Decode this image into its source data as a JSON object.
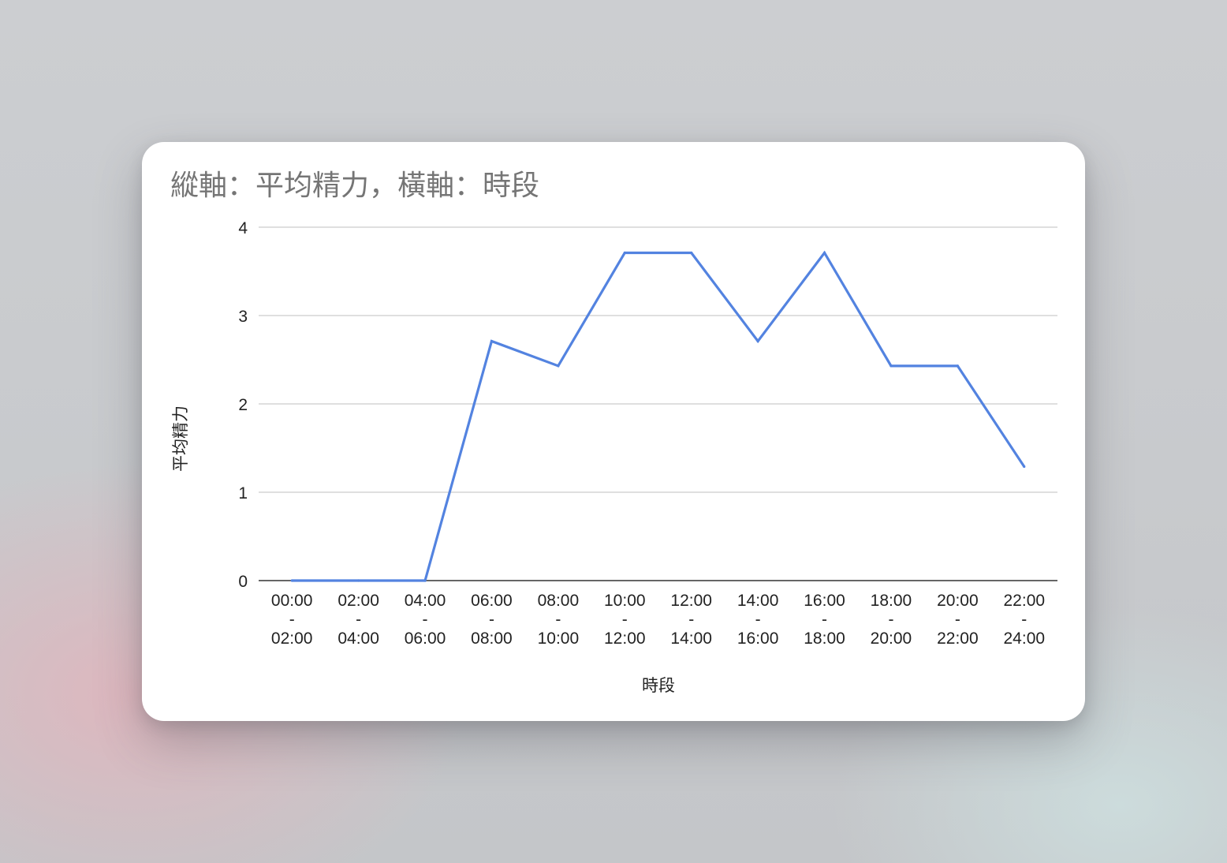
{
  "chart_data": {
    "type": "line",
    "title": "縱軸：平均精力，橫軸：時段",
    "xlabel": "時段",
    "ylabel": "平均精力",
    "ylim": [
      0,
      4
    ],
    "yticks": [
      "0",
      "1",
      "2",
      "3",
      "4"
    ],
    "grid": true,
    "legend": "none",
    "categories": [
      [
        "00:00",
        "-",
        "02:00"
      ],
      [
        "02:00",
        "-",
        "04:00"
      ],
      [
        "04:00",
        "-",
        "06:00"
      ],
      [
        "06:00",
        "-",
        "08:00"
      ],
      [
        "08:00",
        "-",
        "10:00"
      ],
      [
        "10:00",
        "-",
        "12:00"
      ],
      [
        "12:00",
        "-",
        "14:00"
      ],
      [
        "14:00",
        "-",
        "16:00"
      ],
      [
        "16:00",
        "-",
        "18:00"
      ],
      [
        "18:00",
        "-",
        "20:00"
      ],
      [
        "20:00",
        "-",
        "22:00"
      ],
      [
        "22:00",
        "-",
        "24:00"
      ]
    ],
    "series": [
      {
        "color": "#5383e0",
        "values": [
          0,
          0,
          0,
          2.71,
          2.43,
          3.71,
          3.71,
          2.71,
          3.71,
          2.43,
          2.43,
          1.29
        ]
      }
    ],
    "colors": {
      "grid": "#cccccc",
      "axis": "#333333"
    }
  }
}
